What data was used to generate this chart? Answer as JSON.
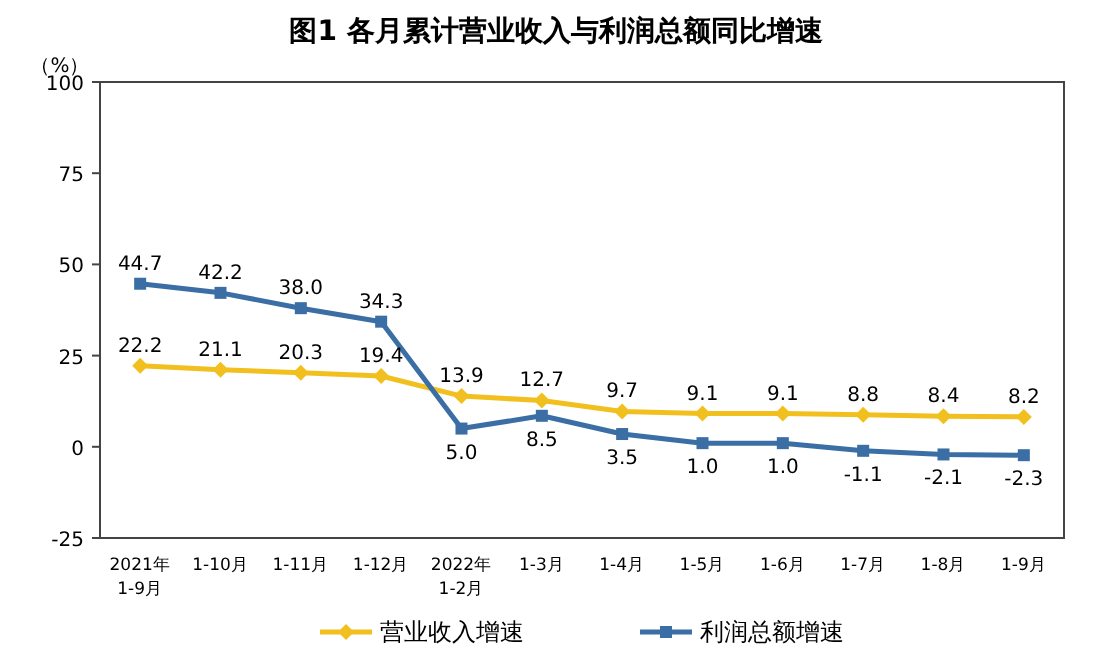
{
  "chart_data": {
    "type": "line",
    "title": "图1  各月累计营业收入与利润总额同比增速",
    "ylabel": "（%）",
    "categories": [
      "2021年\n1-9月",
      "1-10月",
      "1-11月",
      "1-12月",
      "2022年\n1-2月",
      "1-3月",
      "1-4月",
      "1-5月",
      "1-6月",
      "1-7月",
      "1-8月",
      "1-9月"
    ],
    "series": [
      {
        "name": "营业收入增速",
        "color": "#f2c01e",
        "marker": "diamond",
        "values": [
          22.2,
          21.1,
          20.3,
          19.4,
          13.9,
          12.7,
          9.7,
          9.1,
          9.1,
          8.8,
          8.4,
          8.2
        ],
        "value_labels": [
          "22.2",
          "21.1",
          "20.3",
          "19.4",
          "13.9",
          "12.7",
          "9.7",
          "9.1",
          "9.1",
          "8.8",
          "8.4",
          "8.2"
        ]
      },
      {
        "name": "利润总额增速",
        "color": "#3a6ea5",
        "marker": "square",
        "values": [
          44.7,
          42.2,
          38.0,
          34.3,
          5.0,
          8.5,
          3.5,
          1.0,
          1.0,
          -1.1,
          -2.1,
          -2.3
        ],
        "value_labels": [
          "44.7",
          "42.2",
          "38.0",
          "34.3",
          "5.0",
          "8.5",
          "3.5",
          "1.0",
          "1.0",
          "-1.1",
          "-2.1",
          "-2.3"
        ]
      }
    ],
    "ylim": [
      -25,
      100
    ],
    "yticks": [
      -25,
      0,
      25,
      50,
      75,
      100
    ],
    "grid": false,
    "legend": "bottom"
  }
}
